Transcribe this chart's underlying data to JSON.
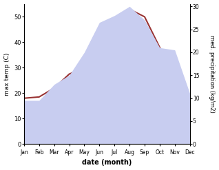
{
  "months": [
    "Jan",
    "Feb",
    "Mar",
    "Apr",
    "May",
    "Jun",
    "Jul",
    "Aug",
    "Sep",
    "Oct",
    "Nov",
    "Dec"
  ],
  "month_positions": [
    1,
    2,
    3,
    4,
    5,
    6,
    7,
    8,
    9,
    10,
    11,
    12
  ],
  "temp_max": [
    18.0,
    18.5,
    22.0,
    27.5,
    30.0,
    30.0,
    45.0,
    53.0,
    50.0,
    38.0,
    22.0,
    11.0
  ],
  "precipitation": [
    9.5,
    9.5,
    13.0,
    15.0,
    20.0,
    26.5,
    28.0,
    30.0,
    27.0,
    21.0,
    20.5,
    11.0
  ],
  "temp_color": "#993333",
  "precip_fill_color": "#c8cdf0",
  "xlabel": "date (month)",
  "ylabel_left": "max temp (C)",
  "ylabel_right": "med. precipitation (kg/m2)",
  "ylim_left": [
    0,
    55
  ],
  "ylim_right": [
    0,
    30.5
  ],
  "yticks_left": [
    0,
    10,
    20,
    30,
    40,
    50
  ],
  "yticks_right": [
    0,
    5,
    10,
    15,
    20,
    25,
    30
  ],
  "background_color": "#ffffff"
}
